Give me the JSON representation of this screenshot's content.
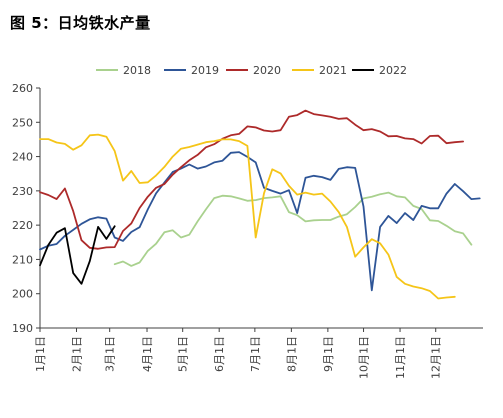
{
  "title": "图 5：日均铁水产量",
  "chart_data": {
    "type": "line",
    "title": "图 5：日均铁水产量",
    "xlabel": "",
    "ylabel": "",
    "ylim": [
      190,
      260
    ],
    "yticks": [
      190,
      200,
      210,
      220,
      230,
      240,
      250,
      260
    ],
    "week_range": [
      1,
      52
    ],
    "month_ticks": [
      {
        "label": "1月1日",
        "week": 1
      },
      {
        "label": "2月1日",
        "week": 5.4
      },
      {
        "label": "3月1日",
        "week": 9.4
      },
      {
        "label": "4月1日",
        "week": 13.9
      },
      {
        "label": "5月1日",
        "week": 18.2
      },
      {
        "label": "6月1日",
        "week": 22.6
      },
      {
        "label": "7月1日",
        "week": 26.9
      },
      {
        "label": "8月1日",
        "week": 31.3
      },
      {
        "label": "9月1日",
        "week": 35.7
      },
      {
        "label": "10月1日",
        "week": 40
      },
      {
        "label": "11月1日",
        "week": 44.4
      },
      {
        "label": "12月1日",
        "week": 48.7
      }
    ],
    "legend_position": "top",
    "grid": false,
    "series": [
      {
        "name": "2018",
        "color": "#a9d18e",
        "start_week": 10,
        "values": [
          208.6,
          209.4,
          208.1,
          209.1,
          212.5,
          214.6,
          217.9,
          218.5,
          216.4,
          217.2,
          221.1,
          224.6,
          227.9,
          228.6,
          228.4,
          227.8,
          227.1,
          227.3,
          227.9,
          228.1,
          228.4,
          223.8,
          222.9,
          221.1,
          221.4,
          221.5,
          221.5,
          222.5,
          223.2,
          225.3,
          227.8,
          228.3,
          229,
          229.5,
          228.4,
          228.1,
          225.6,
          224.7,
          221.4,
          221.2,
          219.8,
          218.2,
          217.6,
          214.3
        ]
      },
      {
        "name": "2019",
        "color": "#2e5597",
        "start_week": 1,
        "values": [
          212.9,
          214,
          214.5,
          216.9,
          218.6,
          220.4,
          221.7,
          222.3,
          221.9,
          216.4,
          215.4,
          218,
          219.4,
          224.6,
          229.3,
          232.4,
          235.5,
          236.5,
          237.7,
          236.5,
          237.1,
          238.3,
          238.8,
          241.1,
          241.3,
          239.9,
          238.3,
          230.9,
          230,
          229.2,
          230.2,
          223.5,
          233.8,
          234.4,
          234,
          233.2,
          236.4,
          236.9,
          236.7,
          225.4,
          201,
          219.5,
          222.7,
          220.6,
          223.5,
          221.5,
          225.6,
          224.9,
          224.9,
          229.2,
          232,
          229.9,
          227.6,
          227.8
        ]
      },
      {
        "name": "2020",
        "color": "#ad2a2a",
        "start_week": 1,
        "values": [
          229.6,
          228.8,
          227.6,
          230.7,
          224.1,
          215.6,
          213.4,
          213.1,
          213.5,
          213.6,
          218.3,
          220.5,
          225,
          228.3,
          230.9,
          232,
          234.7,
          236.9,
          238.9,
          240.5,
          242.7,
          243.6,
          245.2,
          246.2,
          246.6,
          248.8,
          248.5,
          247.6,
          247.3,
          247.7,
          251.6,
          252.1,
          253.4,
          252.4,
          252,
          251.6,
          251,
          251.2,
          249.3,
          247.7,
          248,
          247.3,
          245.9,
          246,
          245.3,
          245.1,
          243.8,
          246,
          246.1,
          243.9,
          244.2,
          244.4
        ]
      },
      {
        "name": "2021",
        "color": "#f5c518",
        "start_week": 1,
        "values": [
          245.1,
          245.1,
          244.1,
          243.7,
          242,
          243.3,
          246.2,
          246.4,
          245.8,
          241.6,
          233,
          235.8,
          232.3,
          232.5,
          234.5,
          237,
          240,
          242.3,
          242.8,
          243.5,
          244.2,
          244.5,
          245,
          245,
          244.5,
          243.1,
          216.4,
          229.3,
          236.3,
          235.1,
          231.5,
          228.9,
          229.5,
          228.9,
          229.2,
          226.9,
          223.8,
          219.5,
          210.8,
          213.5,
          215.9,
          214.7,
          211.4,
          204.9,
          202.9,
          202.1,
          201.6,
          200.8,
          198.6,
          198.9,
          199.1
        ]
      },
      {
        "name": "2022",
        "color": "#000000",
        "start_week": 1,
        "values": [
          208.3,
          214.2,
          217.8,
          219.1,
          206,
          202.9,
          209.5,
          219.5,
          216,
          219.7
        ]
      }
    ]
  }
}
